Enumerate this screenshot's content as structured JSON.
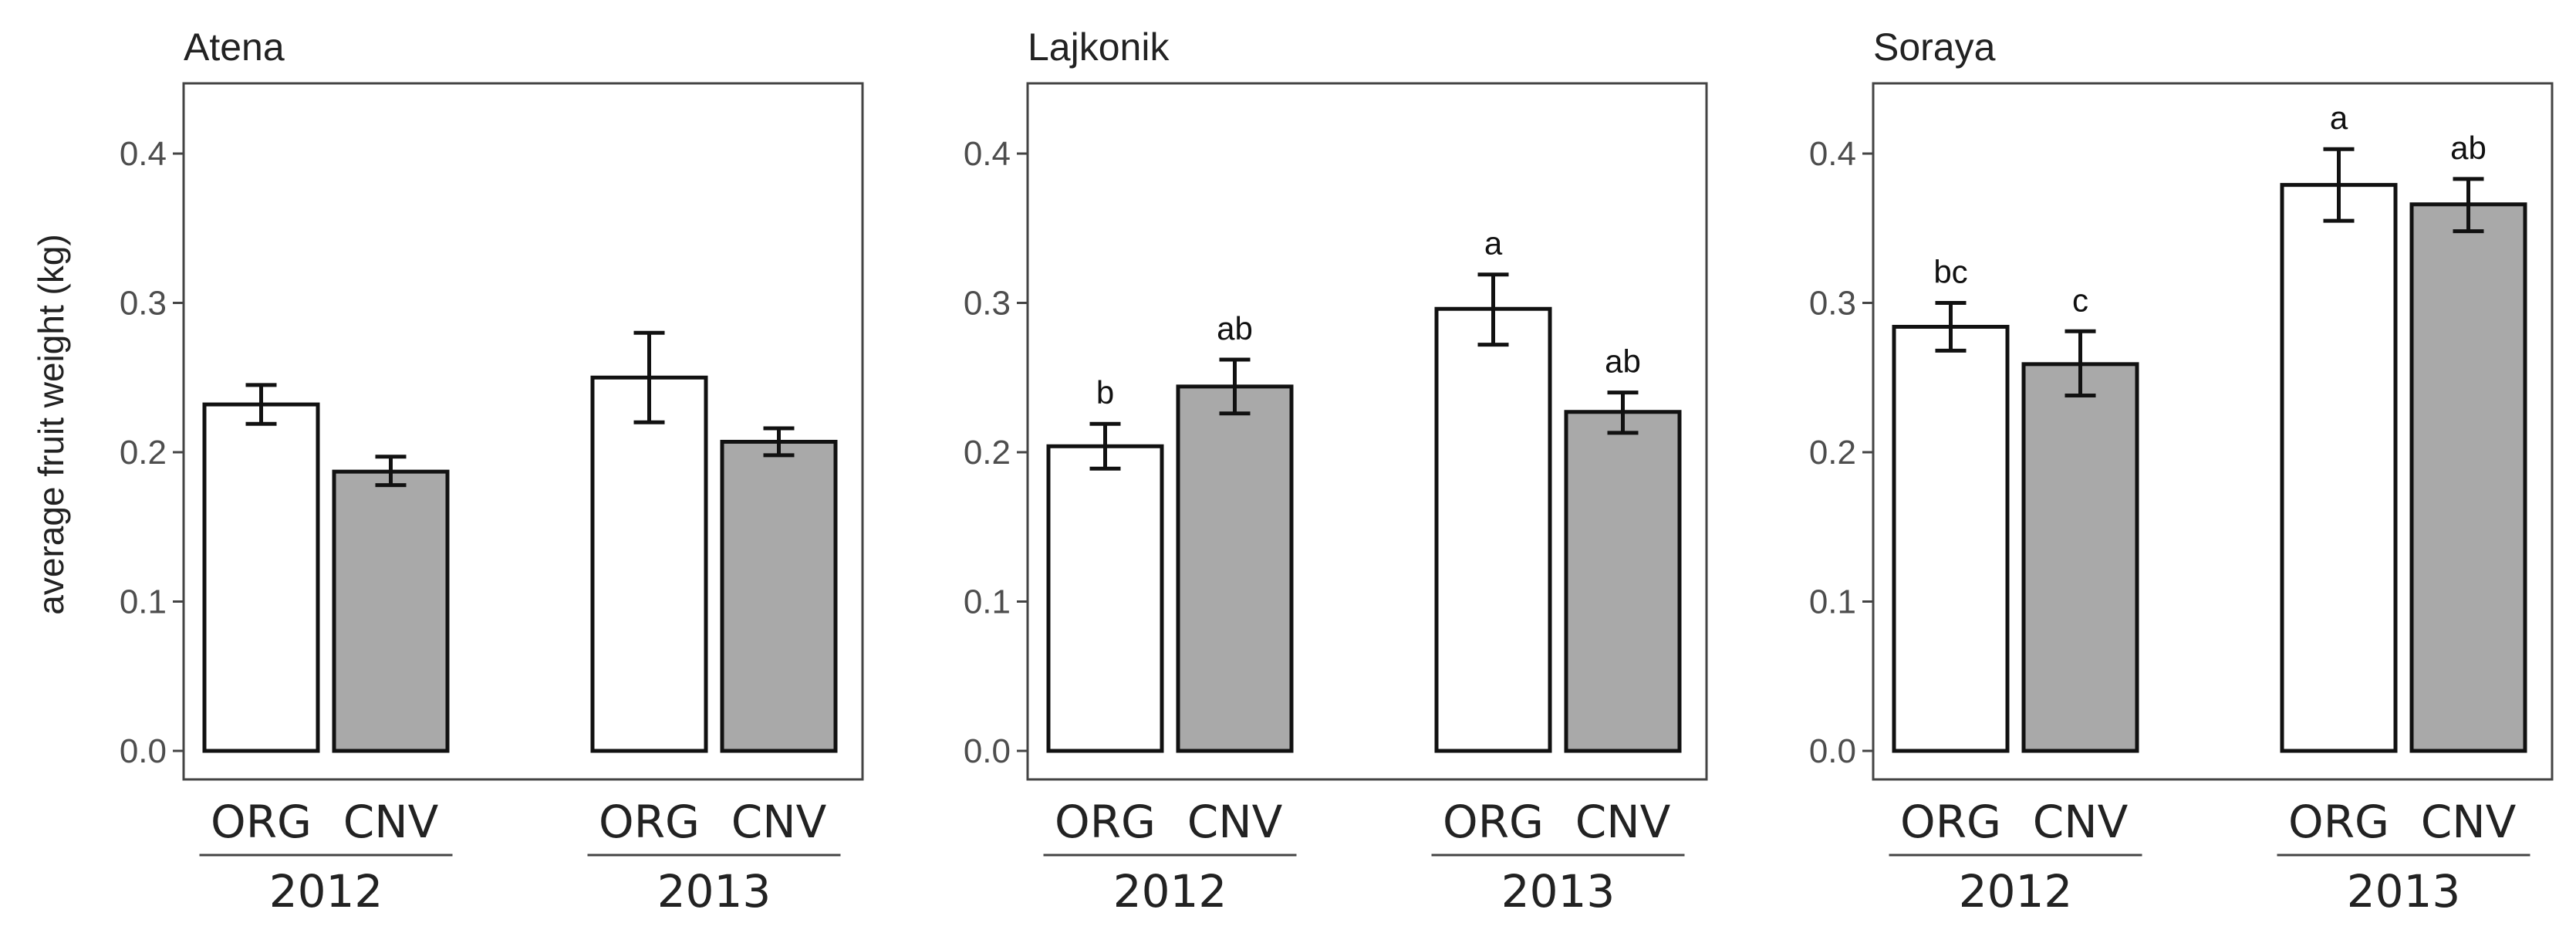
{
  "chart_data": {
    "type": "bar",
    "ylabel": "average fruit weight (kg)",
    "ylim": [
      0,
      0.45
    ],
    "yticks": [
      0.0,
      0.1,
      0.2,
      0.3,
      0.4
    ],
    "ytick_labels": [
      "0.0",
      "0.1",
      "0.2",
      "0.3",
      "0.4"
    ],
    "group_labels": [
      "ORG",
      "CNV"
    ],
    "years": [
      "2012",
      "2013"
    ],
    "fill_colors": {
      "ORG": "#ffffff",
      "CNV": "#a9a9a9"
    },
    "panels": [
      {
        "title": "Atena",
        "bars": [
          {
            "year": "2012",
            "system": "ORG",
            "value": 0.232,
            "err_low": 0.219,
            "err_high": 0.245,
            "label": ""
          },
          {
            "year": "2012",
            "system": "CNV",
            "value": 0.187,
            "err_low": 0.178,
            "err_high": 0.197,
            "label": ""
          },
          {
            "year": "2013",
            "system": "ORG",
            "value": 0.25,
            "err_low": 0.22,
            "err_high": 0.28,
            "label": ""
          },
          {
            "year": "2013",
            "system": "CNV",
            "value": 0.207,
            "err_low": 0.198,
            "err_high": 0.216,
            "label": ""
          }
        ]
      },
      {
        "title": "Lajkonik",
        "bars": [
          {
            "year": "2012",
            "system": "ORG",
            "value": 0.204,
            "err_low": 0.189,
            "err_high": 0.219,
            "label": "b"
          },
          {
            "year": "2012",
            "system": "CNV",
            "value": 0.244,
            "err_low": 0.226,
            "err_high": 0.262,
            "label": "ab"
          },
          {
            "year": "2013",
            "system": "ORG",
            "value": 0.296,
            "err_low": 0.272,
            "err_high": 0.319,
            "label": "a"
          },
          {
            "year": "2013",
            "system": "CNV",
            "value": 0.227,
            "err_low": 0.213,
            "err_high": 0.24,
            "label": "ab"
          }
        ]
      },
      {
        "title": "Soraya",
        "bars": [
          {
            "year": "2012",
            "system": "ORG",
            "value": 0.284,
            "err_low": 0.268,
            "err_high": 0.3,
            "label": "bc"
          },
          {
            "year": "2012",
            "system": "CNV",
            "value": 0.259,
            "err_low": 0.238,
            "err_high": 0.281,
            "label": "c"
          },
          {
            "year": "2013",
            "system": "ORG",
            "value": 0.379,
            "err_low": 0.355,
            "err_high": 0.403,
            "label": "a"
          },
          {
            "year": "2013",
            "system": "CNV",
            "value": 0.366,
            "err_low": 0.348,
            "err_high": 0.383,
            "label": "ab"
          }
        ]
      }
    ]
  }
}
